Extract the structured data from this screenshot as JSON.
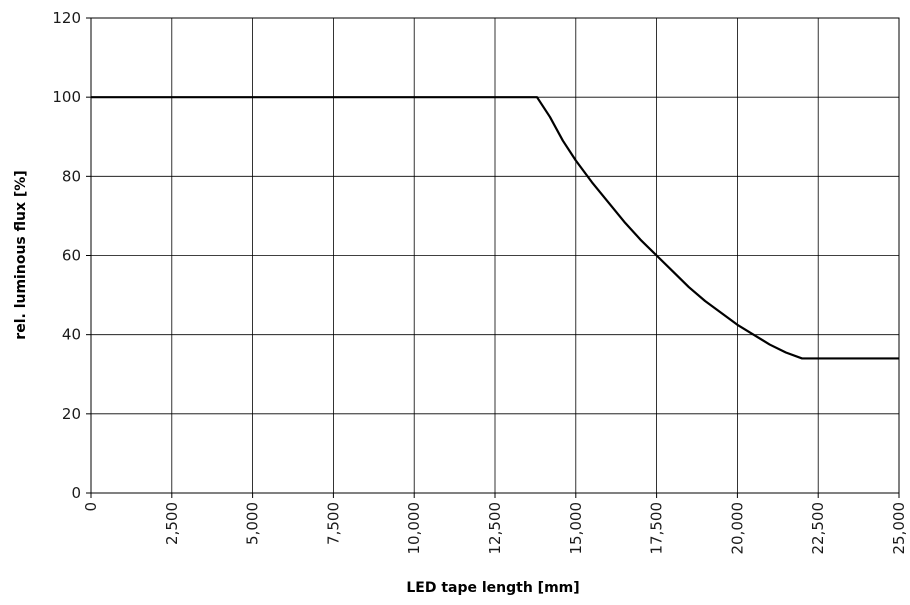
{
  "chart_data": {
    "type": "line",
    "title": "",
    "xlabel": "LED tape length [mm]",
    "ylabel": "rel. luminous flux [%]",
    "xlim": [
      0,
      25000
    ],
    "ylim": [
      0,
      120
    ],
    "x_ticks": [
      0,
      2500,
      5000,
      7500,
      10000,
      12500,
      15000,
      17500,
      20000,
      22500,
      25000
    ],
    "x_tick_labels": [
      "0",
      "2,500",
      "5,000",
      "7,500",
      "10,000",
      "12,500",
      "15,000",
      "17,500",
      "20,000",
      "22,500",
      "25,000"
    ],
    "y_ticks": [
      0,
      20,
      40,
      60,
      80,
      100,
      120
    ],
    "y_tick_labels": [
      "0",
      "20",
      "40",
      "60",
      "80",
      "100",
      "120"
    ],
    "grid": true,
    "series": [
      {
        "color": "#000000",
        "x": [
          0,
          13800,
          14200,
          14600,
          15000,
          15500,
          16000,
          16500,
          17000,
          17500,
          18000,
          18500,
          19000,
          19500,
          20000,
          20500,
          21000,
          21500,
          22000,
          25000
        ],
        "y": [
          100,
          100,
          95,
          89,
          84,
          78.5,
          73.5,
          68.5,
          64,
          60,
          56,
          52,
          48.5,
          45.5,
          42.5,
          40,
          37.5,
          35.5,
          34,
          34
        ]
      }
    ]
  }
}
